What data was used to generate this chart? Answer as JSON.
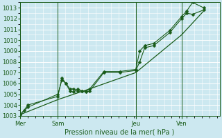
{
  "xlabel": "Pression niveau de la mer( hPa )",
  "bg_color": "#cce8f0",
  "grid_color_major": "#ffffff",
  "grid_color_minor": "#daeef5",
  "line_color": "#1a5c1a",
  "ylim": [
    1003,
    1013.5
  ],
  "yticks": [
    1003,
    1004,
    1005,
    1006,
    1007,
    1008,
    1009,
    1010,
    1011,
    1012,
    1013
  ],
  "day_labels": [
    "Mer",
    "Sam",
    "Jeu",
    "Ven"
  ],
  "day_positions": [
    0.0,
    0.19,
    0.58,
    0.81
  ],
  "xlim": [
    0.0,
    1.0
  ],
  "line1_x": [
    0.0,
    0.02,
    0.04,
    0.19,
    0.21,
    0.23,
    0.25,
    0.27,
    0.29,
    0.31,
    0.33,
    0.35,
    0.42,
    0.5,
    0.58,
    0.6,
    0.625,
    0.67,
    0.75,
    0.81,
    0.835,
    0.865,
    0.92
  ],
  "line1_y": [
    1003.1,
    1003.5,
    1004.0,
    1004.8,
    1006.5,
    1006.0,
    1005.3,
    1005.2,
    1005.5,
    1005.3,
    1005.2,
    1005.3,
    1007.0,
    1007.0,
    1007.2,
    1008.0,
    1009.3,
    1009.5,
    1010.7,
    1012.0,
    1012.5,
    1012.4,
    1012.8
  ],
  "line2_x": [
    0.0,
    0.04,
    0.19,
    0.21,
    0.23,
    0.25,
    0.27,
    0.29,
    0.31,
    0.33,
    0.35,
    0.42,
    0.5,
    0.58,
    0.6,
    0.625,
    0.67,
    0.75,
    0.81,
    0.835,
    0.865,
    0.92
  ],
  "line2_y": [
    1003.1,
    1003.8,
    1005.0,
    1006.3,
    1006.0,
    1005.5,
    1005.5,
    1005.3,
    1005.3,
    1005.3,
    1005.5,
    1007.1,
    1007.1,
    1007.3,
    1009.0,
    1009.5,
    1009.7,
    1010.9,
    1012.2,
    1012.7,
    1013.5,
    1013.0
  ],
  "line3_x": [
    0.0,
    0.19,
    0.35,
    0.58,
    0.81,
    0.92
  ],
  "line3_y": [
    1003.1,
    1004.5,
    1005.5,
    1007.0,
    1010.5,
    1012.7
  ],
  "markersize": 2.5
}
